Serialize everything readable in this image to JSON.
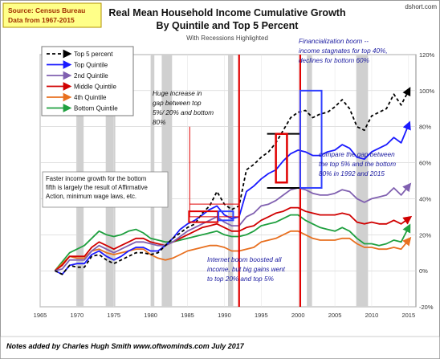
{
  "source_box": {
    "line1": "Source: Census Bureau",
    "line2": "Data from 1967-2015"
  },
  "branding": "dshort.com",
  "footer_note": "Notes added by Charles Hugh Smith  www.oftwominds.com  July 2017",
  "chart_data": {
    "type": "line",
    "title": "Real Mean Household Income Cumulative Growth",
    "subtitle": "By Quintile and Top 5 Percent",
    "subtitle2": "With Recessions Highlighted",
    "xlabel": "",
    "ylabel": "",
    "xlim": [
      1965,
      2016
    ],
    "ylim": [
      -20,
      120
    ],
    "x_ticks": [
      1965,
      1970,
      1975,
      1980,
      1985,
      1990,
      1995,
      2000,
      2005,
      2010,
      2015
    ],
    "y_ticks": [
      -20,
      0,
      20,
      40,
      60,
      80,
      100,
      120
    ],
    "y_tick_suffix": "%",
    "grid": true,
    "legend_position": "top-left",
    "recessions": [
      [
        1969.9,
        1970.9
      ],
      [
        1973.9,
        1975.2
      ],
      [
        1980.0,
        1980.5
      ],
      [
        1981.5,
        1982.9
      ],
      [
        1990.5,
        1991.2
      ],
      [
        2001.2,
        2001.9
      ],
      [
        2007.9,
        2009.5
      ]
    ],
    "series": [
      {
        "name": "Top 5 percent",
        "color": "#000000",
        "dashed": true,
        "arrow": true,
        "x": [
          1967,
          1968,
          1969,
          1970,
          1971,
          1972,
          1973,
          1974,
          1975,
          1976,
          1977,
          1978,
          1979,
          1980,
          1981,
          1982,
          1983,
          1984,
          1985,
          1986,
          1987,
          1988,
          1989,
          1990,
          1991,
          1992,
          1993,
          1994,
          1995,
          1996,
          1997,
          1998,
          1999,
          2000,
          2001,
          2002,
          2003,
          2004,
          2005,
          2006,
          2007,
          2008,
          2009,
          2010,
          2011,
          2012,
          2013,
          2014,
          2015
        ],
        "y": [
          0,
          -2,
          3,
          2,
          2,
          8,
          9,
          6,
          4,
          6,
          8,
          10,
          10,
          9,
          10,
          14,
          18,
          21,
          24,
          26,
          32,
          36,
          44,
          37,
          34,
          36,
          56,
          59,
          63,
          66,
          71,
          78,
          85,
          88,
          89,
          85,
          87,
          88,
          91,
          95,
          90,
          80,
          78,
          86,
          88,
          90,
          98,
          92,
          100
        ]
      },
      {
        "name": "Top Quintile",
        "color": "#1a1aff",
        "arrow": true,
        "x": [
          1967,
          1968,
          1969,
          1970,
          1971,
          1972,
          1973,
          1974,
          1975,
          1976,
          1977,
          1978,
          1979,
          1980,
          1981,
          1982,
          1983,
          1984,
          1985,
          1986,
          1987,
          1988,
          1989,
          1990,
          1991,
          1992,
          1993,
          1994,
          1995,
          1996,
          1997,
          1998,
          1999,
          2000,
          2001,
          2002,
          2003,
          2004,
          2005,
          2006,
          2007,
          2008,
          2009,
          2010,
          2011,
          2012,
          2013,
          2014,
          2015
        ],
        "y": [
          0,
          -2,
          3,
          4,
          4,
          9,
          11,
          8,
          6,
          8,
          11,
          13,
          13,
          11,
          11,
          14,
          18,
          23,
          26,
          28,
          31,
          34,
          36,
          31,
          29,
          30,
          44,
          47,
          51,
          54,
          56,
          61,
          65,
          67,
          66,
          64,
          64,
          66,
          67,
          70,
          68,
          63,
          62,
          66,
          68,
          70,
          74,
          71,
          81
        ]
      },
      {
        "name": "2nd Quintile",
        "color": "#8060b0",
        "arrow": true,
        "x": [
          1967,
          1968,
          1969,
          1970,
          1971,
          1972,
          1973,
          1974,
          1975,
          1976,
          1977,
          1978,
          1979,
          1980,
          1981,
          1982,
          1983,
          1984,
          1985,
          1986,
          1987,
          1988,
          1989,
          1990,
          1991,
          1992,
          1993,
          1994,
          1995,
          1996,
          1997,
          1998,
          1999,
          2000,
          2001,
          2002,
          2003,
          2004,
          2005,
          2006,
          2007,
          2008,
          2009,
          2010,
          2011,
          2012,
          2013,
          2014,
          2015
        ],
        "y": [
          0,
          1,
          6,
          6,
          6,
          11,
          14,
          12,
          10,
          12,
          14,
          16,
          16,
          15,
          14,
          14,
          16,
          19,
          22,
          24,
          26,
          28,
          30,
          27,
          25,
          25,
          30,
          32,
          36,
          37,
          39,
          42,
          45,
          46,
          45,
          43,
          42,
          42,
          43,
          45,
          44,
          40,
          38,
          40,
          41,
          42,
          46,
          42,
          47
        ]
      },
      {
        "name": "Middle Quintile",
        "color": "#d00000",
        "arrow": true,
        "x": [
          1967,
          1968,
          1969,
          1970,
          1971,
          1972,
          1973,
          1974,
          1975,
          1976,
          1977,
          1978,
          1979,
          1980,
          1981,
          1982,
          1983,
          1984,
          1985,
          1986,
          1987,
          1988,
          1989,
          1990,
          1991,
          1992,
          1993,
          1994,
          1995,
          1996,
          1997,
          1998,
          1999,
          2000,
          2001,
          2002,
          2003,
          2004,
          2005,
          2006,
          2007,
          2008,
          2009,
          2010,
          2011,
          2012,
          2013,
          2014,
          2015
        ],
        "y": [
          0,
          3,
          8,
          8,
          8,
          13,
          16,
          14,
          12,
          14,
          16,
          18,
          18,
          16,
          15,
          14,
          16,
          18,
          20,
          22,
          24,
          25,
          26,
          24,
          22,
          22,
          24,
          25,
          28,
          30,
          32,
          33,
          35,
          35,
          33,
          32,
          31,
          31,
          31,
          32,
          31,
          27,
          26,
          27,
          26,
          26,
          28,
          26,
          29
        ]
      },
      {
        "name": "4th Quintile",
        "color": "#e87020",
        "arrow": true,
        "x": [
          1967,
          1968,
          1969,
          1970,
          1971,
          1972,
          1973,
          1974,
          1975,
          1976,
          1977,
          1978,
          1979,
          1980,
          1981,
          1982,
          1983,
          1984,
          1985,
          1986,
          1987,
          1988,
          1989,
          1990,
          1991,
          1992,
          1993,
          1994,
          1995,
          1996,
          1997,
          1998,
          1999,
          2000,
          2001,
          2002,
          2003,
          2004,
          2005,
          2006,
          2007,
          2008,
          2009,
          2010,
          2011,
          2012,
          2013,
          2014,
          2015
        ],
        "y": [
          0,
          4,
          8,
          7,
          7,
          11,
          12,
          10,
          9,
          10,
          11,
          12,
          12,
          9,
          7,
          6,
          7,
          9,
          11,
          12,
          13,
          14,
          14,
          13,
          11,
          11,
          12,
          13,
          16,
          17,
          18,
          20,
          22,
          22,
          20,
          18,
          17,
          17,
          17,
          18,
          18,
          15,
          13,
          13,
          12,
          12,
          13,
          12,
          17
        ]
      },
      {
        "name": "Bottom Quintile",
        "color": "#20a040",
        "arrow": true,
        "x": [
          1967,
          1968,
          1969,
          1970,
          1971,
          1972,
          1973,
          1974,
          1975,
          1976,
          1977,
          1978,
          1979,
          1980,
          1981,
          1982,
          1983,
          1984,
          1985,
          1986,
          1987,
          1988,
          1989,
          1990,
          1991,
          1992,
          1993,
          1994,
          1995,
          1996,
          1997,
          1998,
          1999,
          2000,
          2001,
          2002,
          2003,
          2004,
          2005,
          2006,
          2007,
          2008,
          2009,
          2010,
          2011,
          2012,
          2013,
          2014,
          2015
        ],
        "y": [
          0,
          5,
          10,
          12,
          14,
          18,
          22,
          20,
          19,
          20,
          22,
          23,
          21,
          18,
          17,
          16,
          16,
          17,
          18,
          19,
          20,
          21,
          22,
          20,
          19,
          19,
          20,
          22,
          25,
          26,
          27,
          29,
          31,
          31,
          28,
          26,
          24,
          23,
          22,
          24,
          22,
          18,
          15,
          15,
          14,
          15,
          17,
          16,
          24
        ]
      }
    ],
    "annotations": [
      {
        "id": "faster-growth",
        "lines": [
          "Faster income growth  for the bottom",
          "fifth is largely the result of Affirmative",
          "Action, minimum wage laws, etc."
        ]
      },
      {
        "id": "huge-increase",
        "lines": [
          "Huge increase in",
          "gap between top",
          "5%/ 20% and bottom",
          "80%"
        ]
      },
      {
        "id": "financialization",
        "lines": [
          "Financialization boom --",
          "income stagnates for top 40%,",
          "declines for bottom 60%"
        ]
      },
      {
        "id": "compare-gap",
        "lines": [
          "compare the gap between",
          "the top 5% and the bottom",
          "80% in 1992 and 2015"
        ]
      },
      {
        "id": "internet-boom",
        "lines": [
          "Internet boom boosted all",
          "income, but  big gains went",
          "to top 20% and top 5%"
        ]
      }
    ],
    "marker_lines": [
      1992,
      2000.3
    ]
  }
}
